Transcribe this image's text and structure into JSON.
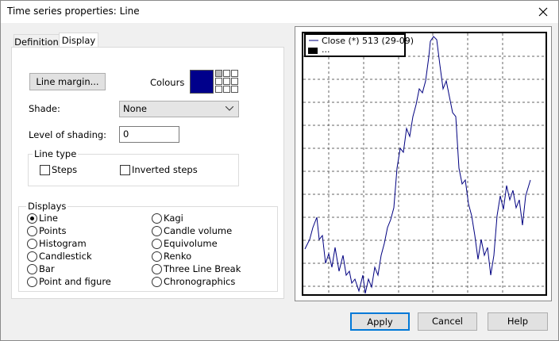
{
  "title": "Time series properties: Line",
  "tabs": [
    "Definition",
    "Display"
  ],
  "display": {
    "line_margin_button": "Line margin...",
    "colours_label": "Colours",
    "shade_label": "Shade:",
    "shade_value": "None",
    "level_label": "Level of shading:",
    "level_value": "0",
    "line_type": {
      "label": "Line type",
      "options": [
        "Steps",
        "Inverted steps"
      ]
    },
    "displays": {
      "label": "Displays",
      "columns": [
        [
          "Line",
          "Points",
          "Histogram",
          "Candlestick",
          "Bar",
          "Point and figure"
        ],
        [
          "Kagi",
          "Candle volume",
          "Equivolume",
          "Renko",
          "Three Line Break",
          "Chronographics"
        ]
      ]
    }
  },
  "preview": {
    "legend": [
      "Close (*) 513 (29-09)",
      "..."
    ]
  },
  "buttons": [
    "Apply",
    "Cancel",
    "Help"
  ]
}
